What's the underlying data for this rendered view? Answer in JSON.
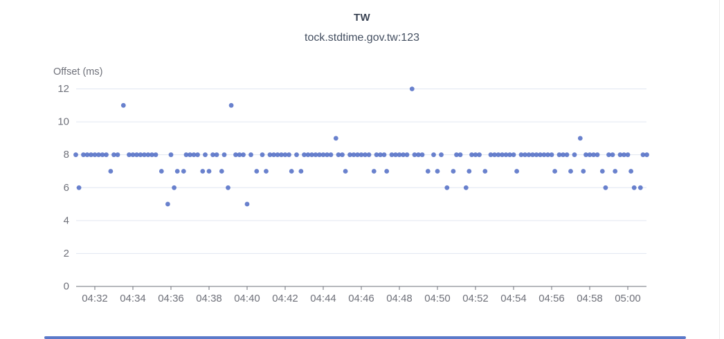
{
  "chart": {
    "title": "TW",
    "subtitle": "tock.stdtime.gov.tw:123",
    "y_axis": {
      "name": "Offset (ms)",
      "ticks": [
        0,
        2,
        4,
        6,
        8,
        10,
        12
      ],
      "min": 0,
      "max": 12
    },
    "x_axis": {
      "tick_labels": [
        "04:32",
        "04:34",
        "04:36",
        "04:38",
        "04:40",
        "04:42",
        "04:44",
        "04:46",
        "04:48",
        "04:50",
        "04:52",
        "04:54",
        "04:56",
        "04:58",
        "05:00"
      ]
    },
    "colors": {
      "point": "#5470C6",
      "grid": "#E0E6F1",
      "axis": "#6E7079",
      "tick_label": "#6E7079",
      "right_border": "#ECECEC",
      "bottom_strip": "#5B79C9"
    }
  },
  "chart_data": {
    "type": "scatter",
    "title": "TW",
    "subtitle": "tock.stdtime.gov.tw:123",
    "series_name": "tock.stdtime.gov.tw:123",
    "ylabel": "Offset (ms)",
    "unit": "ms",
    "ylim": [
      0,
      12
    ],
    "grid": true,
    "x_range": [
      "04:31:00",
      "05:01:00"
    ],
    "time_start": "04:31:00",
    "time_end": "05:01:00",
    "sample_interval_seconds": 12,
    "default_value": 8,
    "exceptions": [
      [
        "04:31:10",
        6
      ],
      [
        "04:32:50",
        7
      ],
      [
        "04:33:30",
        11
      ],
      [
        "04:35:30",
        7
      ],
      [
        "04:35:50",
        5
      ],
      [
        "04:36:10",
        6
      ],
      [
        "04:36:20",
        7
      ],
      [
        "04:36:40",
        7
      ],
      [
        "04:37:40",
        7
      ],
      [
        "04:38:00",
        7
      ],
      [
        "04:38:40",
        7
      ],
      [
        "04:39:00",
        6
      ],
      [
        "04:39:10",
        11
      ],
      [
        "04:40:00",
        5
      ],
      [
        "04:40:30",
        7
      ],
      [
        "04:41:00",
        7
      ],
      [
        "04:42:20",
        7
      ],
      [
        "04:42:50",
        7
      ],
      [
        "04:44:40",
        9
      ],
      [
        "04:45:10",
        7
      ],
      [
        "04:46:40",
        7
      ],
      [
        "04:47:20",
        7
      ],
      [
        "04:48:40",
        12
      ],
      [
        "04:49:30",
        7
      ],
      [
        "04:50:00",
        7
      ],
      [
        "04:50:30",
        6
      ],
      [
        "04:50:50",
        7
      ],
      [
        "04:51:30",
        6
      ],
      [
        "04:51:40",
        7
      ],
      [
        "04:52:30",
        7
      ],
      [
        "04:54:10",
        7
      ],
      [
        "04:56:10",
        7
      ],
      [
        "04:57:00",
        7
      ],
      [
        "04:57:30",
        9
      ],
      [
        "04:57:40",
        7
      ],
      [
        "04:58:40",
        7
      ],
      [
        "04:58:50",
        6
      ],
      [
        "04:59:20",
        7
      ],
      [
        "05:00:10",
        7
      ],
      [
        "05:00:20",
        6
      ],
      [
        "05:00:40",
        6
      ]
    ]
  }
}
